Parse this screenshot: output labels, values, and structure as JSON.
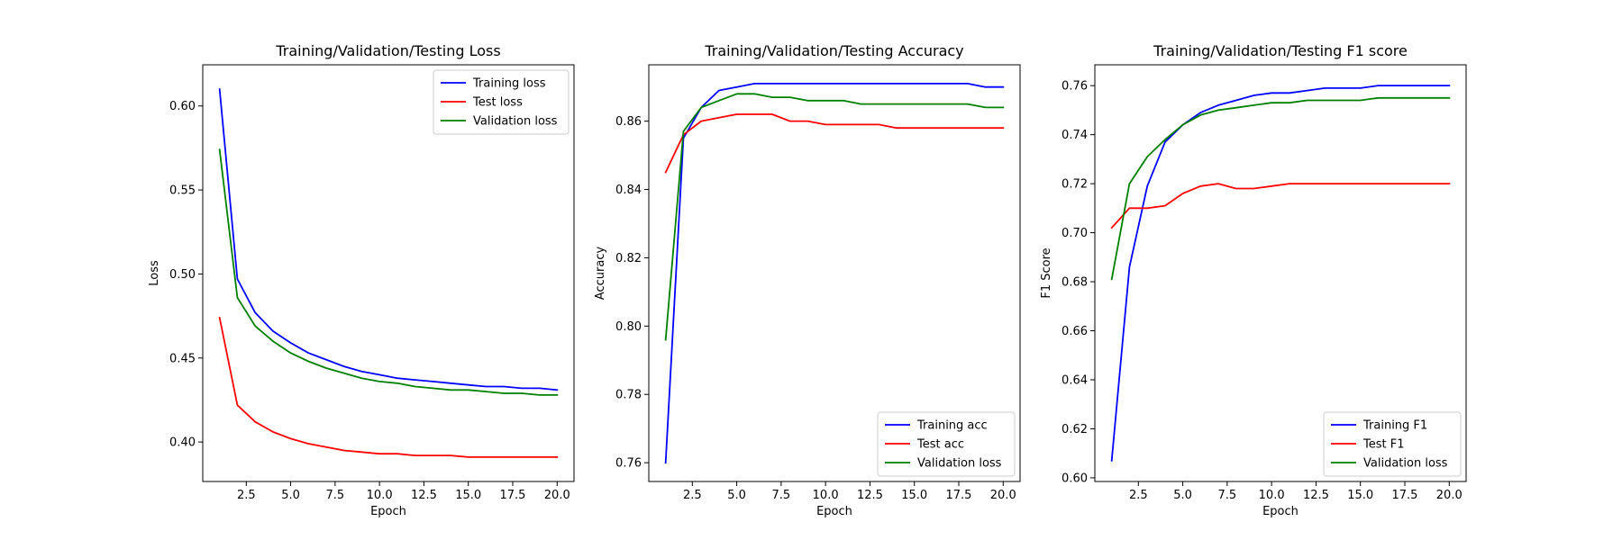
{
  "chart_data": [
    {
      "type": "line",
      "title": "Training/Validation/Testing Loss",
      "xlabel": "Epoch",
      "ylabel": "Loss",
      "xlim": [
        0.05,
        20.95
      ],
      "ylim": [
        0.3765,
        0.6245
      ],
      "xticks": [
        2.5,
        5.0,
        7.5,
        10.0,
        12.5,
        15.0,
        17.5,
        20.0
      ],
      "yticks": [
        0.4,
        0.45,
        0.5,
        0.55,
        0.6
      ],
      "ytick_decimals": 2,
      "legend_position": "top-right",
      "x": [
        1,
        2,
        3,
        4,
        5,
        6,
        7,
        8,
        9,
        10,
        11,
        12,
        13,
        14,
        15,
        16,
        17,
        18,
        19,
        20
      ],
      "series": [
        {
          "name": "Training loss",
          "color": "#0000ff",
          "values": [
            0.61,
            0.497,
            0.477,
            0.466,
            0.459,
            0.453,
            0.449,
            0.445,
            0.442,
            0.44,
            0.438,
            0.437,
            0.436,
            0.435,
            0.434,
            0.433,
            0.433,
            0.432,
            0.432,
            0.431
          ]
        },
        {
          "name": "Test loss",
          "color": "#ff0000",
          "values": [
            0.474,
            0.422,
            0.412,
            0.406,
            0.402,
            0.399,
            0.397,
            0.395,
            0.394,
            0.393,
            0.393,
            0.392,
            0.392,
            0.392,
            0.391,
            0.391,
            0.391,
            0.391,
            0.391,
            0.391
          ]
        },
        {
          "name": "Validation loss",
          "color": "#008000",
          "values": [
            0.574,
            0.486,
            0.469,
            0.46,
            0.453,
            0.448,
            0.444,
            0.441,
            0.438,
            0.436,
            0.435,
            0.433,
            0.432,
            0.431,
            0.431,
            0.43,
            0.429,
            0.429,
            0.428,
            0.428
          ]
        }
      ]
    },
    {
      "type": "line",
      "title": "Training/Validation/Testing Accuracy",
      "xlabel": "Epoch",
      "ylabel": "Accuracy",
      "xlim": [
        0.05,
        20.95
      ],
      "ylim": [
        0.7545,
        0.8765
      ],
      "xticks": [
        2.5,
        5.0,
        7.5,
        10.0,
        12.5,
        15.0,
        17.5,
        20.0
      ],
      "yticks": [
        0.76,
        0.78,
        0.8,
        0.82,
        0.84,
        0.86
      ],
      "ytick_decimals": 2,
      "legend_position": "bottom-right",
      "x": [
        1,
        2,
        3,
        4,
        5,
        6,
        7,
        8,
        9,
        10,
        11,
        12,
        13,
        14,
        15,
        16,
        17,
        18,
        19,
        20
      ],
      "series": [
        {
          "name": "Training acc",
          "color": "#0000ff",
          "values": [
            0.76,
            0.855,
            0.864,
            0.869,
            0.87,
            0.871,
            0.871,
            0.871,
            0.871,
            0.871,
            0.871,
            0.871,
            0.871,
            0.871,
            0.871,
            0.871,
            0.871,
            0.871,
            0.87,
            0.87
          ]
        },
        {
          "name": "Test acc",
          "color": "#ff0000",
          "values": [
            0.845,
            0.856,
            0.86,
            0.861,
            0.862,
            0.862,
            0.862,
            0.86,
            0.86,
            0.859,
            0.859,
            0.859,
            0.859,
            0.858,
            0.858,
            0.858,
            0.858,
            0.858,
            0.858,
            0.858
          ]
        },
        {
          "name": "Validation loss",
          "color": "#008000",
          "values": [
            0.796,
            0.857,
            0.864,
            0.866,
            0.868,
            0.868,
            0.867,
            0.867,
            0.866,
            0.866,
            0.866,
            0.865,
            0.865,
            0.865,
            0.865,
            0.865,
            0.865,
            0.865,
            0.864,
            0.864
          ]
        }
      ]
    },
    {
      "type": "line",
      "title": "Training/Validation/Testing F1 score",
      "xlabel": "Epoch",
      "ylabel": "F1 Score",
      "xlim": [
        0.05,
        20.95
      ],
      "ylim": [
        0.5985,
        0.7685
      ],
      "xticks": [
        2.5,
        5.0,
        7.5,
        10.0,
        12.5,
        15.0,
        17.5,
        20.0
      ],
      "yticks": [
        0.6,
        0.62,
        0.64,
        0.66,
        0.68,
        0.7,
        0.72,
        0.74,
        0.76
      ],
      "ytick_decimals": 2,
      "legend_position": "bottom-right",
      "x": [
        1,
        2,
        3,
        4,
        5,
        6,
        7,
        8,
        9,
        10,
        11,
        12,
        13,
        14,
        15,
        16,
        17,
        18,
        19,
        20
      ],
      "series": [
        {
          "name": "Training F1",
          "color": "#0000ff",
          "values": [
            0.607,
            0.686,
            0.719,
            0.737,
            0.744,
            0.749,
            0.752,
            0.754,
            0.756,
            0.757,
            0.757,
            0.758,
            0.759,
            0.759,
            0.759,
            0.76,
            0.76,
            0.76,
            0.76,
            0.76
          ]
        },
        {
          "name": "Test F1",
          "color": "#ff0000",
          "values": [
            0.702,
            0.71,
            0.71,
            0.711,
            0.716,
            0.719,
            0.72,
            0.718,
            0.718,
            0.719,
            0.72,
            0.72,
            0.72,
            0.72,
            0.72,
            0.72,
            0.72,
            0.72,
            0.72,
            0.72
          ]
        },
        {
          "name": "Validation loss",
          "color": "#008000",
          "values": [
            0.681,
            0.72,
            0.731,
            0.738,
            0.744,
            0.748,
            0.75,
            0.751,
            0.752,
            0.753,
            0.753,
            0.754,
            0.754,
            0.754,
            0.754,
            0.755,
            0.755,
            0.755,
            0.755,
            0.755
          ]
        }
      ]
    }
  ]
}
